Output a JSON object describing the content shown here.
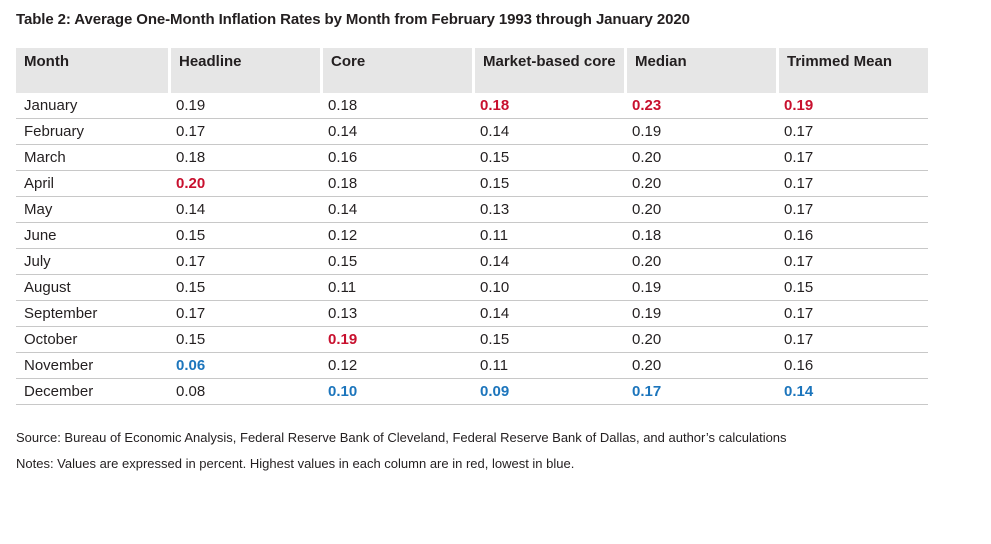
{
  "title": "Table 2: Average One-Month Inflation Rates by Month from February 1993 through January 2020",
  "source": "Source: Bureau of Economic Analysis, Federal Reserve Bank of Cleveland, Federal Reserve Bank of Dallas, and author’s calculations",
  "notes": "Notes: Values are expressed in percent. Highest values in each column are in red, lowest in blue.",
  "colors": {
    "highest": "#c8102e",
    "lowest": "#1c75bc",
    "header_bg": "#e6e6e6"
  },
  "chart_data": {
    "type": "table",
    "title": "Table 2: Average One-Month Inflation Rates by Month from February 1993 through January 2020",
    "columns": [
      "Month",
      "Headline",
      "Core",
      "Market-based core",
      "Median",
      "Trimmed Mean"
    ],
    "rows": [
      {
        "month": "January",
        "values": [
          "0.19",
          "0.18",
          "0.18",
          "0.23",
          "0.19"
        ],
        "flags": [
          "",
          "",
          "hi",
          "hi",
          "hi"
        ]
      },
      {
        "month": "February",
        "values": [
          "0.17",
          "0.14",
          "0.14",
          "0.19",
          "0.17"
        ],
        "flags": [
          "",
          "",
          "",
          "",
          ""
        ]
      },
      {
        "month": "March",
        "values": [
          "0.18",
          "0.16",
          "0.15",
          "0.20",
          "0.17"
        ],
        "flags": [
          "",
          "",
          "",
          "",
          ""
        ]
      },
      {
        "month": "April",
        "values": [
          "0.20",
          "0.18",
          "0.15",
          "0.20",
          "0.17"
        ],
        "flags": [
          "hi",
          "",
          "",
          "",
          ""
        ]
      },
      {
        "month": "May",
        "values": [
          "0.14",
          "0.14",
          "0.13",
          "0.20",
          "0.17"
        ],
        "flags": [
          "",
          "",
          "",
          "",
          ""
        ]
      },
      {
        "month": "June",
        "values": [
          "0.15",
          "0.12",
          "0.11",
          "0.18",
          "0.16"
        ],
        "flags": [
          "",
          "",
          "",
          "",
          ""
        ]
      },
      {
        "month": "July",
        "values": [
          "0.17",
          "0.15",
          "0.14",
          "0.20",
          "0.17"
        ],
        "flags": [
          "",
          "",
          "",
          "",
          ""
        ]
      },
      {
        "month": "August",
        "values": [
          "0.15",
          "0.11",
          "0.10",
          "0.19",
          "0.15"
        ],
        "flags": [
          "",
          "",
          "",
          "",
          ""
        ]
      },
      {
        "month": "September",
        "values": [
          "0.17",
          "0.13",
          "0.14",
          "0.19",
          "0.17"
        ],
        "flags": [
          "",
          "",
          "",
          "",
          ""
        ]
      },
      {
        "month": "October",
        "values": [
          "0.15",
          "0.19",
          "0.15",
          "0.20",
          "0.17"
        ],
        "flags": [
          "",
          "hi",
          "",
          "",
          ""
        ]
      },
      {
        "month": "November",
        "values": [
          "0.06",
          "0.12",
          "0.11",
          "0.20",
          "0.16"
        ],
        "flags": [
          "lo",
          "",
          "",
          "",
          ""
        ]
      },
      {
        "month": "December",
        "values": [
          "0.08",
          "0.10",
          "0.09",
          "0.17",
          "0.14"
        ],
        "flags": [
          "",
          "lo",
          "lo",
          "lo",
          "lo"
        ]
      }
    ]
  }
}
